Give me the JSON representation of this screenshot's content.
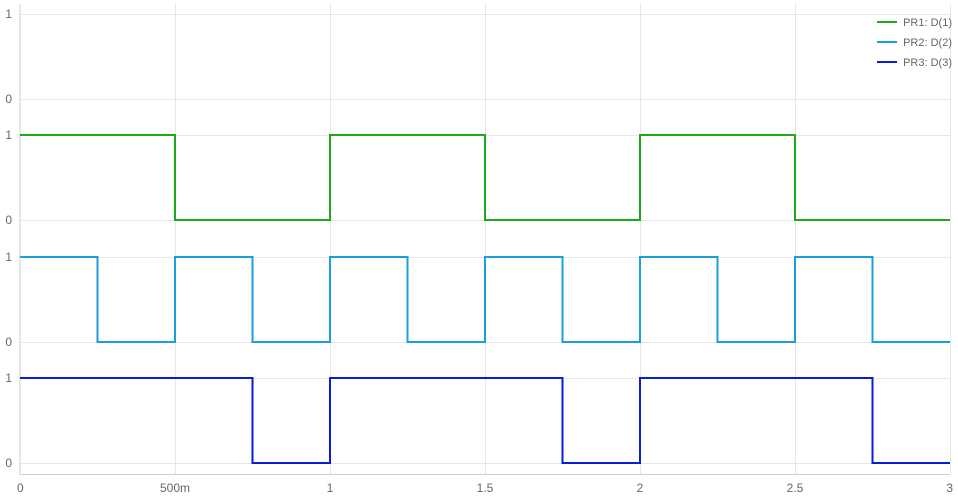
{
  "chart_data": {
    "type": "line",
    "step": true,
    "grid": true,
    "legend_position": "top-right",
    "x_range": [
      0,
      3
    ],
    "x_ticks": [
      {
        "value": 0,
        "label": "0"
      },
      {
        "value": 0.5,
        "label": "500m"
      },
      {
        "value": 1,
        "label": "1"
      },
      {
        "value": 1.5,
        "label": "1.5"
      },
      {
        "value": 2,
        "label": "2"
      },
      {
        "value": 2.5,
        "label": "2.5"
      },
      {
        "value": 3,
        "label": "3"
      }
    ],
    "y_ticks": [
      {
        "value": 1,
        "label": "1"
      },
      {
        "value": 0,
        "label": "0"
      }
    ],
    "lanes": [
      {
        "series": null
      },
      {
        "series": 0
      },
      {
        "series": 1
      },
      {
        "series": 2
      }
    ],
    "series": [
      {
        "name": "PR1: D(1)",
        "color": "#1aaa1a",
        "points": [
          [
            0,
            1
          ],
          [
            0.5,
            1
          ],
          [
            0.5,
            0
          ],
          [
            1,
            0
          ],
          [
            1,
            1
          ],
          [
            1.5,
            1
          ],
          [
            1.5,
            0
          ],
          [
            2,
            0
          ],
          [
            2,
            1
          ],
          [
            2.5,
            1
          ],
          [
            2.5,
            0
          ],
          [
            3,
            0
          ]
        ]
      },
      {
        "name": "PR2: D(2)",
        "color": "#1b9fdb",
        "points": [
          [
            0,
            1
          ],
          [
            0.25,
            1
          ],
          [
            0.25,
            0
          ],
          [
            0.5,
            0
          ],
          [
            0.5,
            1
          ],
          [
            0.75,
            1
          ],
          [
            0.75,
            0
          ],
          [
            1,
            0
          ],
          [
            1,
            1
          ],
          [
            1.25,
            1
          ],
          [
            1.25,
            0
          ],
          [
            1.5,
            0
          ],
          [
            1.5,
            1
          ],
          [
            1.75,
            1
          ],
          [
            1.75,
            0
          ],
          [
            2,
            0
          ],
          [
            2,
            1
          ],
          [
            2.25,
            1
          ],
          [
            2.25,
            0
          ],
          [
            2.5,
            0
          ],
          [
            2.5,
            1
          ],
          [
            2.75,
            1
          ],
          [
            2.75,
            0
          ],
          [
            3,
            0
          ]
        ]
      },
      {
        "name": "PR3: D(3)",
        "color": "#0a1ed6",
        "points": [
          [
            0,
            1
          ],
          [
            0.75,
            1
          ],
          [
            0.75,
            0
          ],
          [
            1,
            0
          ],
          [
            1,
            1
          ],
          [
            1.75,
            1
          ],
          [
            1.75,
            0
          ],
          [
            2,
            0
          ],
          [
            2,
            1
          ],
          [
            2.75,
            1
          ],
          [
            2.75,
            0
          ],
          [
            3,
            0
          ]
        ]
      }
    ]
  }
}
